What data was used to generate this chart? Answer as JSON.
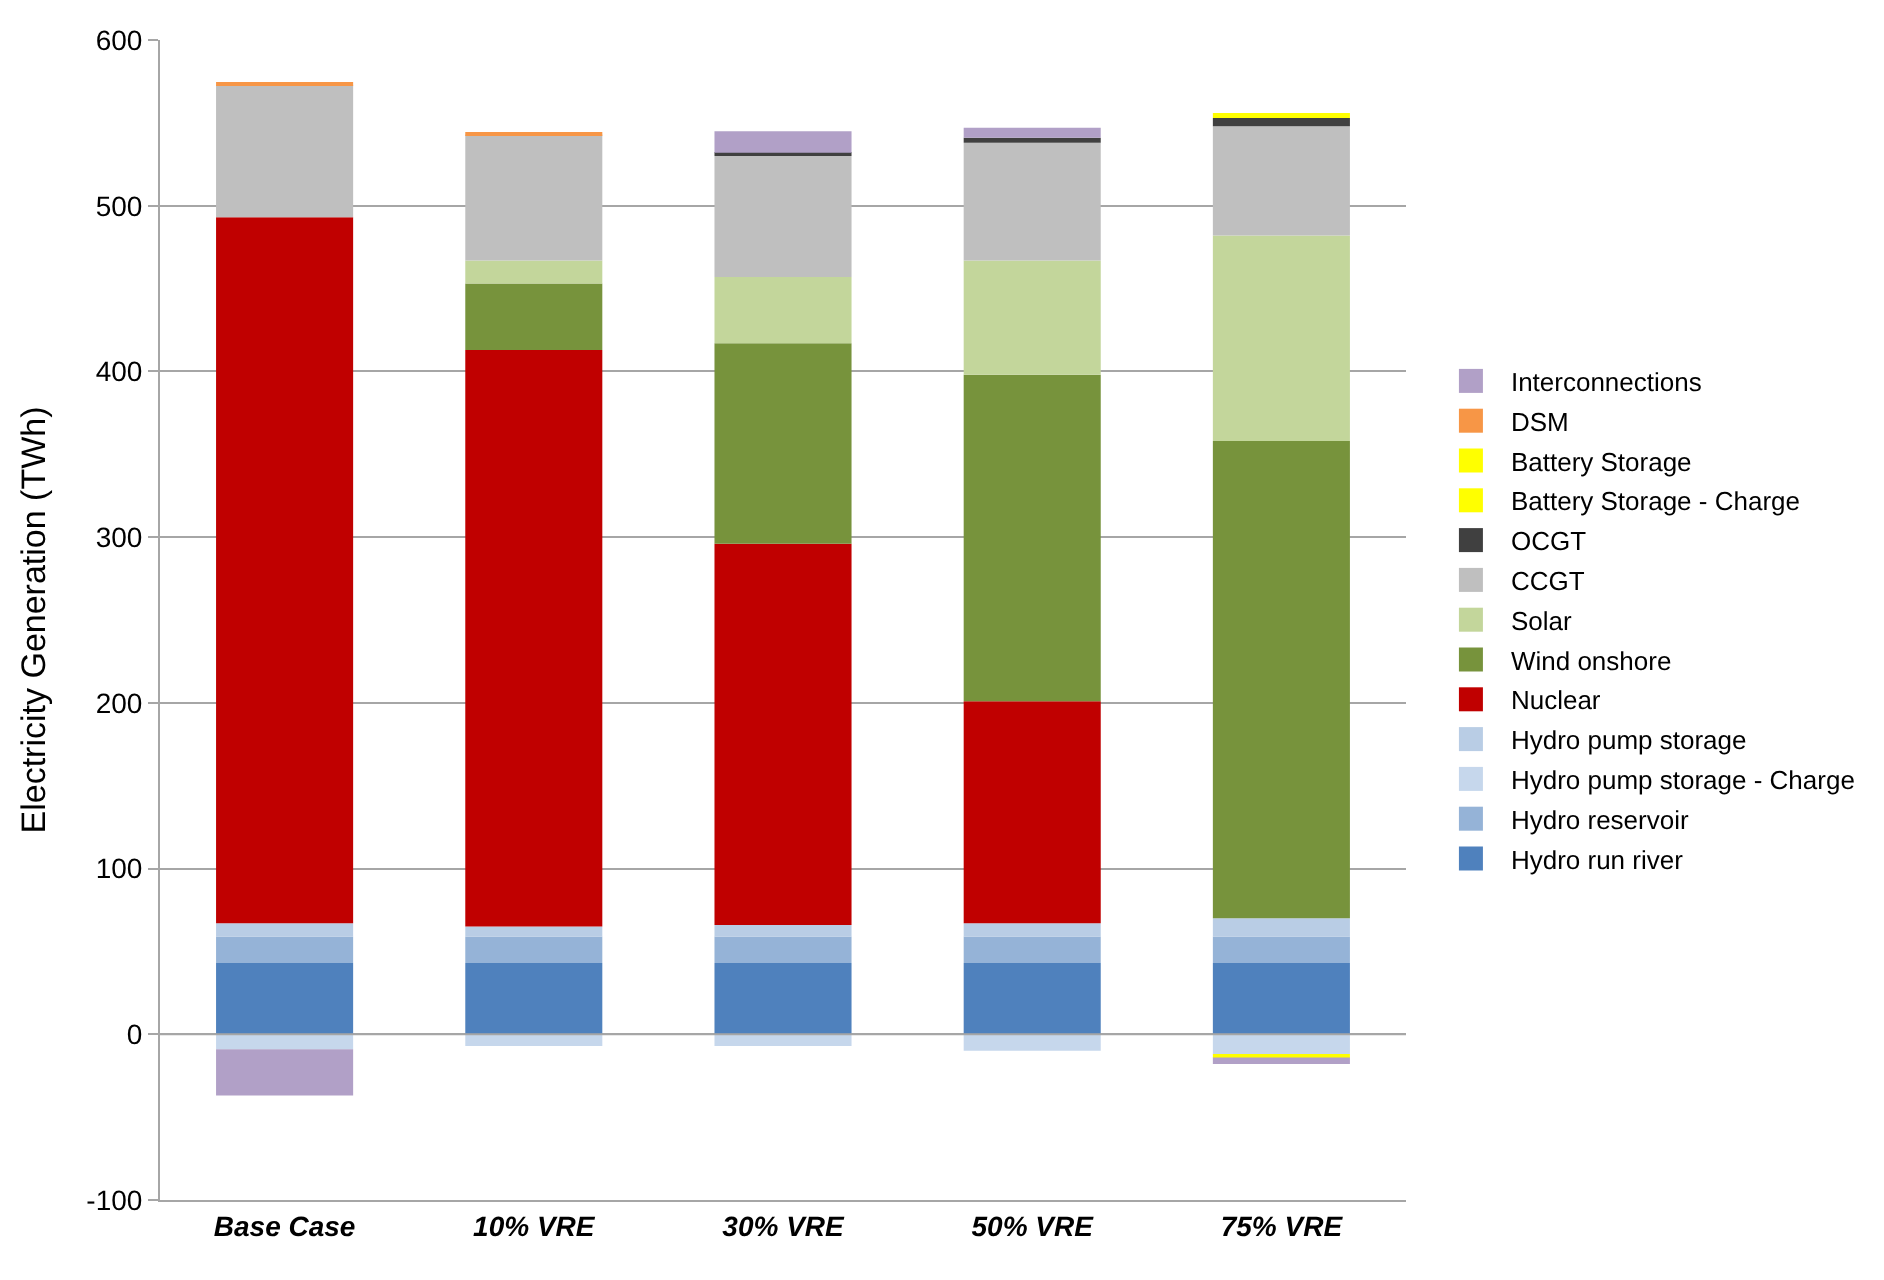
{
  "chart_data": {
    "type": "bar",
    "stacked": true,
    "ylabel": "Electricity Generation (TWh)",
    "categories": [
      "Base Case",
      "10% VRE",
      "30% VRE",
      "50% VRE",
      "75% VRE"
    ],
    "ylim": [
      -100,
      600
    ],
    "yticks": [
      -100,
      0,
      100,
      200,
      300,
      400,
      500,
      600
    ],
    "grid": "y",
    "legend": "right",
    "series": [
      {
        "name": "Hydro run river",
        "color": "#4f81bd",
        "values": [
          43,
          43,
          43,
          43,
          43
        ]
      },
      {
        "name": "Hydro reservoir",
        "color": "#95b3d7",
        "values": [
          16,
          16,
          16,
          16,
          16
        ]
      },
      {
        "name": "Hydro pump storage - Charge",
        "color": "#c6d7ec",
        "values": [
          -9,
          -7,
          -7,
          -10,
          -12
        ]
      },
      {
        "name": "Hydro pump storage",
        "color": "#b9cde5",
        "values": [
          8,
          6,
          7,
          8,
          11
        ]
      },
      {
        "name": "Nuclear",
        "color": "#c00000",
        "values": [
          426,
          348,
          230,
          134,
          null
        ]
      },
      {
        "name": "Wind onshore",
        "color": "#77933c",
        "values": [
          null,
          40,
          121,
          197,
          288
        ]
      },
      {
        "name": "Solar",
        "color": "#c3d69b",
        "values": [
          null,
          14,
          40,
          69,
          124
        ]
      },
      {
        "name": "CCGT",
        "color": "#bfbfbf",
        "values": [
          80,
          76,
          73,
          71,
          66
        ]
      },
      {
        "name": "OCGT",
        "color": "#404040",
        "values": [
          null,
          null,
          2,
          3,
          5
        ]
      },
      {
        "name": "Battery Storage - Charge",
        "color": "#ffff00",
        "values": [
          null,
          null,
          null,
          null,
          -2
        ]
      },
      {
        "name": "Battery Storage",
        "color": "#ffff00",
        "values": [
          null,
          null,
          null,
          null,
          3
        ]
      },
      {
        "name": "DSM",
        "color": "#f79646",
        "values": [
          1,
          1,
          null,
          null,
          null
        ]
      },
      {
        "name": "Interconnections",
        "color": "#b1a0c7",
        "values": [
          -28,
          null,
          13,
          6,
          -4
        ]
      }
    ]
  }
}
